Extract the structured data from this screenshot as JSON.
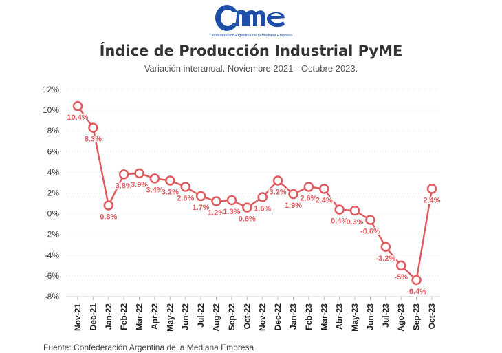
{
  "logo": {
    "text": "Came",
    "subtitle": "Confederación Argentina de la Mediana Empresa",
    "colors": {
      "primary": "#1d4fa8"
    }
  },
  "title": "Índice de Producción Industrial PyME",
  "subtitle": "Variación interanual. Noviembre 2021 - Octubre 2023.",
  "source": "Fuente: Confederación Argentina de la Mediana Empresa",
  "chart_data": {
    "type": "line",
    "title": "Índice de Producción Industrial PyME",
    "subtitle": "Variación interanual. Noviembre 2021 - Octubre 2023.",
    "xlabel": "",
    "ylabel": "",
    "ylim": [
      -8,
      12
    ],
    "yticks": [
      -8,
      -6,
      -4,
      -2,
      0,
      2,
      4,
      6,
      8,
      10,
      12
    ],
    "ytick_suffix": "%",
    "grid": true,
    "legend": "none",
    "color": "#e05a5f",
    "categories": [
      "Nov-21",
      "Dec-21",
      "Jan-22",
      "Feb-22",
      "Mar-22",
      "Apr-22",
      "May-22",
      "Jun-22",
      "Jul-22",
      "Aug-22",
      "Sep-22",
      "Oct-22",
      "Nov-22",
      "Dec-22",
      "Jan-23",
      "Feb-23",
      "Mar-23",
      "Abr-23",
      "May-23",
      "Jun-23",
      "Jul-23",
      "Ago-23",
      "Sep-23",
      "Oct-23"
    ],
    "tick_labels": [
      "Nov-21",
      "Dec-21",
      "Jan-22",
      "Feb-22",
      "Mar-22",
      "Apr-22",
      "May-22",
      "Jun-22",
      "Jul-22",
      "Aug-22",
      "Sep-22",
      "Oct-22",
      "Nov-22",
      "Dec-22",
      "Jan-23",
      "Feb-23",
      "Mar-23",
      "Abr-23",
      "May-23",
      "Jun-23",
      "Jul-23",
      "Ago-23",
      "Sep-23",
      "Oct-23"
    ],
    "values": [
      10.4,
      8.3,
      0.8,
      3.8,
      3.9,
      3.4,
      3.2,
      2.6,
      1.7,
      1.2,
      1.3,
      0.6,
      1.6,
      3.2,
      1.9,
      2.6,
      2.4,
      0.4,
      0.3,
      -0.6,
      -3.2,
      -5,
      -6.4,
      2.4
    ],
    "data_labels": [
      "10.4%",
      "8.3%",
      "0.8%",
      "3.8%",
      "3.9%",
      "3.4%",
      "3.2%",
      "2.6%",
      "1.7%",
      "1.2%",
      "1.3%",
      "0.6%",
      "1.6%",
      "3.2%",
      "1.9%",
      "2.6%",
      "2.4%",
      "0.4%",
      "0.3%",
      "-0.6%",
      "-3.2%",
      "-5%",
      "-6.4%",
      "2.4%"
    ]
  }
}
